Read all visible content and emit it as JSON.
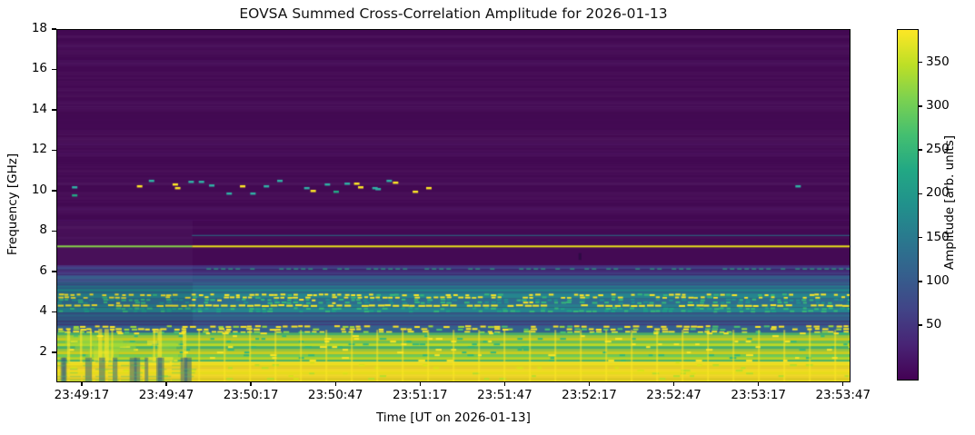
{
  "figure": {
    "title": "EOVSA Summed Cross-Correlation Amplitude for 2026-01-13"
  },
  "chart_data": {
    "type": "heatmap",
    "title": "EOVSA Summed Cross-Correlation Amplitude for 2026-01-13",
    "xlabel": "Time [UT on 2026-01-13]",
    "ylabel": "Frequency [GHz]",
    "x_range": [
      "23:49:08",
      "23:53:49"
    ],
    "x_total_seconds": 281,
    "x_ticks": [
      {
        "label": "23:49:17",
        "s": 9
      },
      {
        "label": "23:49:47",
        "s": 39
      },
      {
        "label": "23:50:17",
        "s": 69
      },
      {
        "label": "23:50:47",
        "s": 99
      },
      {
        "label": "23:51:17",
        "s": 129
      },
      {
        "label": "23:51:47",
        "s": 159
      },
      {
        "label": "23:52:17",
        "s": 189
      },
      {
        "label": "23:52:47",
        "s": 219
      },
      {
        "label": "23:53:17",
        "s": 249
      },
      {
        "label": "23:53:47",
        "s": 279
      }
    ],
    "y_range": [
      0.6,
      18
    ],
    "y_ticks": [
      2,
      4,
      6,
      8,
      10,
      12,
      14,
      16,
      18
    ],
    "grid": false,
    "colorbar": {
      "label": "Amplitude [arb. units]",
      "ticks": [
        50,
        100,
        150,
        200,
        250,
        300,
        350
      ],
      "range": [
        -11,
        388
      ],
      "colormap": "viridis",
      "stops": [
        "#440154",
        "#482475",
        "#414487",
        "#355f8d",
        "#2a788e",
        "#21918c",
        "#22a884",
        "#44bf70",
        "#7ad151",
        "#bddf26",
        "#fde725"
      ]
    },
    "spectrogram": {
      "background": "#440a54",
      "quiet_region_top_ghz": 18,
      "quiet_region_bottom_ghz": 7.45,
      "texture_transition_time_frac": 0.171,
      "bands": [
        {
          "f": [
            6.35,
            5.85
          ],
          "pattern": "rows",
          "colors": [
            "#46327e",
            "#414487",
            "#3d2b70"
          ],
          "row": 2
        },
        {
          "f": [
            5.85,
            5.35
          ],
          "pattern": "rows",
          "colors": [
            "#365c8d",
            "#31688e",
            "#3a538b"
          ],
          "row": 2
        },
        {
          "f": [
            5.35,
            4.95
          ],
          "pattern": "rows",
          "colors": [
            "#277f8e",
            "#2c718e",
            "#21918c"
          ],
          "row": 2
        },
        {
          "f": [
            4.95,
            4.7
          ],
          "pattern": "mottle",
          "base": "#25858e",
          "dash": [
            [
              "#fde725",
              0.45
            ],
            [
              "#35b779",
              0.25
            ]
          ],
          "dw": 7,
          "dh": 3
        },
        {
          "f": [
            4.7,
            4.42
          ],
          "pattern": "mottle",
          "base": "#2e6d8e",
          "dash": [
            [
              "#35b779",
              0.3
            ],
            [
              "#21918c",
              0.3
            ],
            [
              "#fde725",
              0.08
            ]
          ],
          "dw": 7,
          "dh": 3
        },
        {
          "f": [
            4.42,
            4.27
          ],
          "pattern": "mottle",
          "base": "#27808e",
          "dash": [
            [
              "#fde725",
              0.85
            ]
          ],
          "dw": 9,
          "dh": 3
        },
        {
          "f": [
            4.27,
            4.0
          ],
          "pattern": "mottle",
          "base": "#25858e",
          "dash": [
            [
              "#35b779",
              0.35
            ],
            [
              "#1fa187",
              0.3
            ]
          ],
          "dw": 7,
          "dh": 3
        },
        {
          "f": [
            4.0,
            3.62
          ],
          "pattern": "rows",
          "colors": [
            "#33638d",
            "#2e6d8e",
            "#31688e"
          ],
          "row": 2
        },
        {
          "f": [
            3.62,
            3.38
          ],
          "pattern": "rows",
          "colors": [
            "#3b3e77",
            "#365c8d",
            "#433d80"
          ],
          "row": 2
        },
        {
          "f": [
            3.38,
            3.02
          ],
          "pattern": "mottle",
          "base": "#34618d",
          "dash": [
            [
              "#fde725",
              0.45
            ],
            [
              "#a0da39",
              0.2
            ],
            [
              "#4ac16d",
              0.15
            ]
          ],
          "dw": 8,
          "dh": 3
        },
        {
          "f": [
            3.02,
            1.58
          ],
          "pattern": "rows",
          "colors": [
            "#4ac16d",
            "#a0da39",
            "#d8e219",
            "#6ece58",
            "#bddf26"
          ],
          "row": 3,
          "speckle": 0.1,
          "scolors": [
            "#fde725",
            "#35b779"
          ]
        },
        {
          "f": [
            1.58,
            0.6
          ],
          "pattern": "rows",
          "colors": [
            "#fde725",
            "#f4e61c",
            "#ece51b",
            "#fde725"
          ],
          "row": 2,
          "speckle": 0.04,
          "scolors": [
            "#d8e219",
            "#b5de2b"
          ]
        }
      ],
      "hlines": [
        {
          "f": 12.35,
          "x": [
            0,
            1
          ],
          "h": 1,
          "color": "#51196b",
          "alpha": 0.7
        },
        {
          "f": 11.9,
          "x": [
            0,
            1
          ],
          "h": 1,
          "color": "#4e1767",
          "alpha": 0.7
        },
        {
          "f": 9.15,
          "x": [
            0,
            1
          ],
          "h": 1,
          "color": "#4e1767",
          "alpha": 0.6
        },
        {
          "f": 8.6,
          "x": [
            0,
            1
          ],
          "h": 1,
          "color": "#4a1364",
          "alpha": 0.6
        },
        {
          "f": 7.85,
          "x": [
            0.17,
            1
          ],
          "h": 1,
          "color": "#26828e",
          "alpha": 0.9
        },
        {
          "f": 7.33,
          "x": [
            0.17,
            1
          ],
          "h": 2,
          "color": "#e8e419",
          "alpha": 1
        },
        {
          "f": 7.33,
          "x": [
            0,
            0.17
          ],
          "h": 2,
          "color": "#86d549",
          "alpha": 1
        },
        {
          "f": 6.2,
          "x": [
            0.17,
            1
          ],
          "h": 1.5,
          "color": "#2ab07f",
          "alpha": 0.7,
          "dashed": true
        },
        {
          "f": 6.2,
          "x": [
            0,
            0.17
          ],
          "h": 1,
          "color": "#3a528b",
          "alpha": 0.6
        }
      ],
      "vlines": {
        "f": [
          3.15,
          0.6
        ],
        "x0": 0.178,
        "spacing": 28,
        "w": 2,
        "color": "rgba(253,231,37,0.55)"
      },
      "scatter_dashes": [
        [
          0.022,
          10.22,
          "teal"
        ],
        [
          0.022,
          9.82,
          "green"
        ],
        [
          0.104,
          10.27,
          "yellow"
        ],
        [
          0.119,
          10.54,
          "teal"
        ],
        [
          0.149,
          10.36,
          "yellow"
        ],
        [
          0.152,
          10.18,
          "yellow"
        ],
        [
          0.169,
          10.49,
          "teal"
        ],
        [
          0.182,
          10.49,
          "teal"
        ],
        [
          0.195,
          10.31,
          "teal"
        ],
        [
          0.217,
          9.91,
          "teal"
        ],
        [
          0.234,
          10.27,
          "yellow"
        ],
        [
          0.247,
          9.91,
          "teal"
        ],
        [
          0.264,
          10.27,
          "teal"
        ],
        [
          0.281,
          10.54,
          "teal"
        ],
        [
          0.315,
          10.18,
          "teal"
        ],
        [
          0.323,
          10.04,
          "yellow"
        ],
        [
          0.341,
          10.36,
          "teal"
        ],
        [
          0.352,
          10.0,
          "green"
        ],
        [
          0.366,
          10.4,
          "teal"
        ],
        [
          0.378,
          10.4,
          "yellow"
        ],
        [
          0.383,
          10.22,
          "yellow"
        ],
        [
          0.401,
          10.18,
          "teal"
        ],
        [
          0.405,
          10.13,
          "teal"
        ],
        [
          0.419,
          10.54,
          "teal"
        ],
        [
          0.427,
          10.45,
          "yellow"
        ],
        [
          0.452,
          10.0,
          "yellow"
        ],
        [
          0.469,
          10.18,
          "yellow"
        ],
        [
          0.935,
          10.27,
          "teal"
        ]
      ],
      "scatter_colors": {
        "teal": "#30b1a5",
        "green": "#23a884",
        "yellow": "#fde725"
      },
      "dark_spot": {
        "x": 0.658,
        "f": [
          6.95,
          6.62
        ],
        "w": 3,
        "color": "#2e0a45"
      },
      "left_zone": {
        "x": [
          0,
          0.171
        ],
        "haze": {
          "f": [
            8.6,
            5.5
          ],
          "color": "rgba(150,130,190,0.05)"
        },
        "shade": {
          "f": [
            5.5,
            3.35
          ],
          "color": "rgba(15,15,60,0.10)"
        },
        "n_blobs": 14,
        "blob_f": [
          3.1,
          1.75
        ],
        "blob_colors": [
          "rgba(253,231,37,0.55)",
          "rgba(160,218,57,0.45)"
        ],
        "n_streaks": 9,
        "streak_f": [
          3.2,
          1.5
        ],
        "streak_color": "rgba(253,231,37,0.6)",
        "n_darkcols": 13,
        "darkcol_f": [
          1.78,
          0.6
        ],
        "darkcol_color": "rgba(42,90,135,0.5)",
        "green_rows": {
          "f": [
            1.6,
            0.6
          ],
          "color": "rgba(74,193,109,0.35)"
        }
      }
    }
  }
}
